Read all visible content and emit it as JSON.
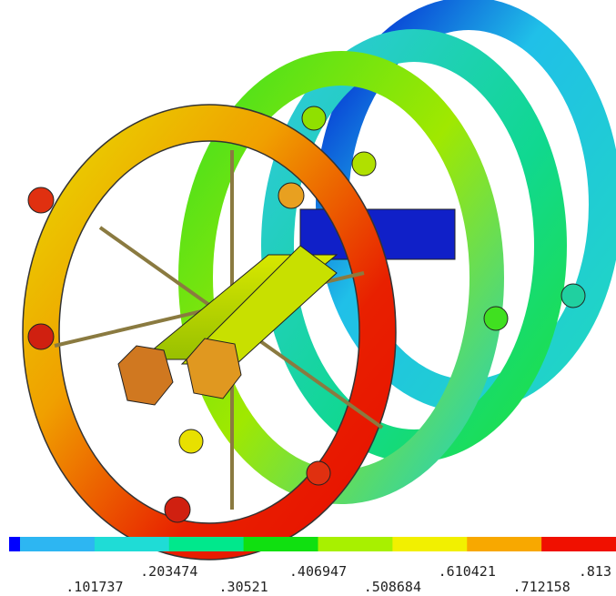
{
  "legend": {
    "labels": [
      ".101737",
      ".203474",
      ".30521",
      ".406947",
      ".508684",
      ".610421",
      ".712158",
      ".813"
    ],
    "colors": [
      "#0000ff",
      "#2db6f2",
      "#1fdcd6",
      "#00e88c",
      "#10e010",
      "#a8f000",
      "#f2f000",
      "#f8a800",
      "#f01000"
    ]
  }
}
